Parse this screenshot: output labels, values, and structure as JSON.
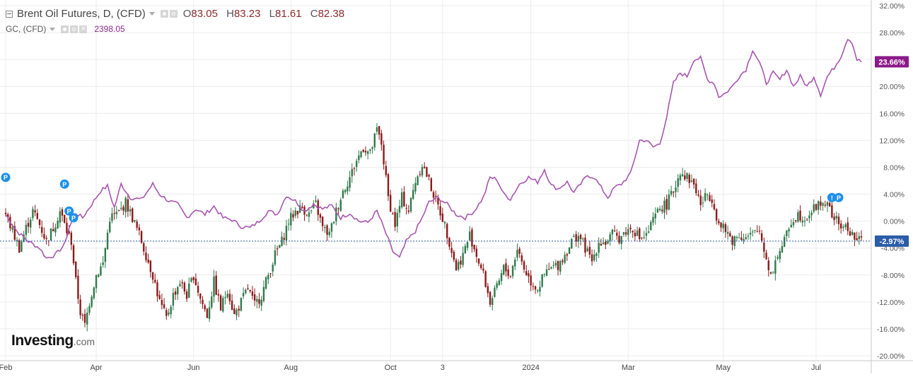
{
  "legend": {
    "primary": {
      "name": "Brent Oil Futures, D, (CFD)",
      "open_label": "O",
      "open": "83.05",
      "high_label": "H",
      "high": "83.23",
      "low_label": "L",
      "low": "81.61",
      "close_label": "C",
      "close": "82.38"
    },
    "secondary": {
      "name": "GC, (CFD)",
      "value": "2398.05"
    }
  },
  "logo": {
    "main": "Investing",
    "sub": ".com"
  },
  "colors": {
    "up": "#2f7a4b",
    "down": "#8b1a1a",
    "gold_line": "#a855b0",
    "current_line": "#2a5ca8",
    "gold_badge": "#8b1a8b",
    "brent_badge": "#2a5ca8",
    "marker": "#1e90e8",
    "grid": "#ececec"
  },
  "chart_data": {
    "type": "line",
    "title": "",
    "y_axis": {
      "ticks": [
        "32.00%",
        "28.00%",
        "24.00%",
        "20.00%",
        "16.00%",
        "12.00%",
        "8.00%",
        "4.00%",
        "0.00%",
        "-4.00%",
        "-8.00%",
        "-12.00%",
        "-16.00%",
        "-20.00%"
      ],
      "range": [
        -20,
        32
      ],
      "unit": "%"
    },
    "x_axis": {
      "ticks": [
        {
          "label": "Feb",
          "t": 0
        },
        {
          "label": "Apr",
          "t": 40
        },
        {
          "label": "Jun",
          "t": 83
        },
        {
          "label": "Aug",
          "t": 126
        },
        {
          "label": "Oct",
          "t": 170
        },
        {
          "label": "3",
          "t": 193
        },
        {
          "label": "2024",
          "t": 232
        },
        {
          "label": "Mar",
          "t": 275
        },
        {
          "label": "May",
          "t": 317
        },
        {
          "label": "Jul",
          "t": 358
        }
      ],
      "range": [
        0,
        378
      ]
    },
    "current_values": {
      "gold": "23.66%",
      "brent": "-2.97%"
    },
    "series": [
      {
        "type": "line",
        "keypoints": [
          [
            0,
            1
          ],
          [
            5,
            -1.5
          ],
          [
            10,
            -3
          ],
          [
            15,
            -4
          ],
          [
            18,
            -5.5
          ],
          [
            22,
            -5
          ],
          [
            26,
            -3.5
          ],
          [
            28,
            -1
          ],
          [
            31,
            1.2
          ],
          [
            34,
            0.5
          ],
          [
            38,
            2.5
          ],
          [
            42,
            4.5
          ],
          [
            45,
            5.2
          ],
          [
            48,
            2
          ],
          [
            51,
            5.5
          ],
          [
            55,
            3.5
          ],
          [
            60,
            3.2
          ],
          [
            65,
            5.5
          ],
          [
            68,
            4
          ],
          [
            72,
            3
          ],
          [
            76,
            2.5
          ],
          [
            80,
            0.5
          ],
          [
            84,
            1.8
          ],
          [
            88,
            1
          ],
          [
            92,
            2.2
          ],
          [
            96,
            0.5
          ],
          [
            100,
            0.2
          ],
          [
            104,
            -0.8
          ],
          [
            108,
            -1
          ],
          [
            112,
            0
          ],
          [
            116,
            1.5
          ],
          [
            120,
            1
          ],
          [
            124,
            3.8
          ],
          [
            128,
            3
          ],
          [
            132,
            1.5
          ],
          [
            136,
            2.5
          ],
          [
            140,
            1.8
          ],
          [
            144,
            2.3
          ],
          [
            148,
            0.5
          ],
          [
            152,
            1.2
          ],
          [
            156,
            0
          ],
          [
            160,
            -0.2
          ],
          [
            164,
            1.5
          ],
          [
            167,
            -1
          ],
          [
            171,
            -4.5
          ],
          [
            174,
            -5.5
          ],
          [
            177,
            -3
          ],
          [
            181,
            -1.5
          ],
          [
            184,
            0.5
          ],
          [
            187,
            2.8
          ],
          [
            191,
            3.5
          ],
          [
            195,
            2.5
          ],
          [
            199,
            1
          ],
          [
            203,
            0.5
          ],
          [
            207,
            1.5
          ],
          [
            211,
            3.5
          ],
          [
            214,
            6.5
          ],
          [
            217,
            6.2
          ],
          [
            220,
            4
          ],
          [
            223,
            3.3
          ],
          [
            227,
            5.5
          ],
          [
            231,
            6.5
          ],
          [
            235,
            5.8
          ],
          [
            238,
            7.7
          ],
          [
            241,
            5.3
          ],
          [
            244,
            4.8
          ],
          [
            248,
            5.8
          ],
          [
            251,
            4.2
          ],
          [
            254,
            5.5
          ],
          [
            257,
            6.8
          ],
          [
            260,
            6.5
          ],
          [
            263,
            5
          ],
          [
            266,
            3.5
          ],
          [
            269,
            5
          ],
          [
            272,
            5.5
          ],
          [
            276,
            7
          ],
          [
            280,
            12
          ],
          [
            283,
            12
          ],
          [
            286,
            11
          ],
          [
            289,
            11.5
          ],
          [
            292,
            15.5
          ],
          [
            295,
            20.5
          ],
          [
            298,
            22
          ],
          [
            301,
            21.5
          ],
          [
            304,
            24
          ],
          [
            307,
            24.2
          ],
          [
            310,
            21
          ],
          [
            313,
            20.5
          ],
          [
            315,
            18.5
          ],
          [
            318,
            19
          ],
          [
            321,
            20
          ],
          [
            324,
            21.5
          ],
          [
            327,
            22.5
          ],
          [
            330,
            25.5
          ],
          [
            333,
            23.5
          ],
          [
            336,
            20.5
          ],
          [
            339,
            22
          ],
          [
            342,
            21
          ],
          [
            345,
            22.5
          ],
          [
            348,
            20
          ],
          [
            351,
            21.5
          ],
          [
            354,
            20
          ],
          [
            357,
            21.5
          ],
          [
            360,
            18.8
          ],
          [
            363,
            21.5
          ],
          [
            366,
            22.8
          ],
          [
            369,
            24.5
          ],
          [
            372,
            27.2
          ],
          [
            374,
            26.5
          ],
          [
            376,
            24
          ],
          [
            378,
            23.66
          ]
        ]
      },
      {
        "type": "candlestick",
        "keypoints": [
          [
            0,
            1
          ],
          [
            3,
            -1.5
          ],
          [
            6,
            -4
          ],
          [
            9,
            -1
          ],
          [
            12,
            1.5
          ],
          [
            15,
            -0.5
          ],
          [
            18,
            -3
          ],
          [
            21,
            -1
          ],
          [
            24,
            1.5
          ],
          [
            27,
            -1.5
          ],
          [
            29,
            -3
          ],
          [
            31,
            -9
          ],
          [
            33,
            -13.5
          ],
          [
            35,
            -15.5
          ],
          [
            37,
            -12
          ],
          [
            40,
            -8
          ],
          [
            43,
            -6.3
          ],
          [
            46,
            0.5
          ],
          [
            50,
            1.2
          ],
          [
            53,
            2.8
          ],
          [
            56,
            0.5
          ],
          [
            59,
            -2
          ],
          [
            62,
            -5
          ],
          [
            65,
            -8
          ],
          [
            68,
            -12
          ],
          [
            71,
            -14.5
          ],
          [
            74,
            -11
          ],
          [
            77,
            -9
          ],
          [
            80,
            -11
          ],
          [
            83,
            -8
          ],
          [
            86,
            -11.5
          ],
          [
            89,
            -14
          ],
          [
            92,
            -9
          ],
          [
            95,
            -13
          ],
          [
            98,
            -10
          ],
          [
            101,
            -14
          ],
          [
            104,
            -12
          ],
          [
            107,
            -10
          ],
          [
            110,
            -12.5
          ],
          [
            113,
            -11
          ],
          [
            116,
            -8
          ],
          [
            119,
            -5
          ],
          [
            122,
            -3
          ],
          [
            125,
            0
          ],
          [
            128,
            1.5
          ],
          [
            131,
            2
          ],
          [
            134,
            1
          ],
          [
            137,
            2.5
          ],
          [
            140,
            -1
          ],
          [
            143,
            -2
          ],
          [
            146,
            1.5
          ],
          [
            149,
            4.5
          ],
          [
            152,
            6.5
          ],
          [
            155,
            9
          ],
          [
            158,
            11
          ],
          [
            161,
            10
          ],
          [
            164,
            13.5
          ],
          [
            166,
            11.5
          ],
          [
            169,
            3.5
          ],
          [
            172,
            -0.5
          ],
          [
            175,
            3.5
          ],
          [
            178,
            1.5
          ],
          [
            181,
            6
          ],
          [
            184,
            8.5
          ],
          [
            187,
            6
          ],
          [
            190,
            3
          ],
          [
            193,
            0.5
          ],
          [
            196,
            -3
          ],
          [
            199,
            -7
          ],
          [
            202,
            -5
          ],
          [
            205,
            -2
          ],
          [
            208,
            -5
          ],
          [
            211,
            -8
          ],
          [
            214,
            -12
          ],
          [
            217,
            -10
          ],
          [
            220,
            -7
          ],
          [
            223,
            -8
          ],
          [
            226,
            -4
          ],
          [
            229,
            -7
          ],
          [
            232,
            -9
          ],
          [
            235,
            -10
          ],
          [
            238,
            -8
          ],
          [
            241,
            -7
          ],
          [
            244,
            -6.5
          ],
          [
            247,
            -5
          ],
          [
            250,
            -3
          ],
          [
            253,
            -2
          ],
          [
            256,
            -4
          ],
          [
            259,
            -6
          ],
          [
            262,
            -3
          ],
          [
            265,
            -3.2
          ],
          [
            268,
            -2
          ],
          [
            271,
            -2.5
          ],
          [
            274,
            -1.5
          ],
          [
            277,
            -1
          ],
          [
            280,
            -2.5
          ],
          [
            283,
            -2.2
          ],
          [
            286,
            0
          ],
          [
            289,
            2
          ],
          [
            292,
            2.5
          ],
          [
            295,
            4.5
          ],
          [
            298,
            7.5
          ],
          [
            301,
            6.5
          ],
          [
            304,
            5.5
          ],
          [
            307,
            2.5
          ],
          [
            310,
            4
          ],
          [
            312,
            3.5
          ],
          [
            315,
            -0.5
          ],
          [
            318,
            -1.5
          ],
          [
            321,
            -2.8
          ],
          [
            324,
            -2
          ],
          [
            327,
            -2.5
          ],
          [
            330,
            -2
          ],
          [
            333,
            -1.5
          ],
          [
            336,
            -5.5
          ],
          [
            338,
            -8
          ],
          [
            341,
            -5
          ],
          [
            344,
            -3
          ],
          [
            347,
            0
          ],
          [
            350,
            1
          ],
          [
            353,
            0.5
          ],
          [
            356,
            1.5
          ],
          [
            359,
            2.5
          ],
          [
            362,
            2.8
          ],
          [
            365,
            1
          ],
          [
            368,
            -0.5
          ],
          [
            371,
            -1
          ],
          [
            373,
            -1.5
          ],
          [
            375,
            -2.5
          ],
          [
            377,
            -2.97
          ]
        ]
      }
    ]
  }
}
